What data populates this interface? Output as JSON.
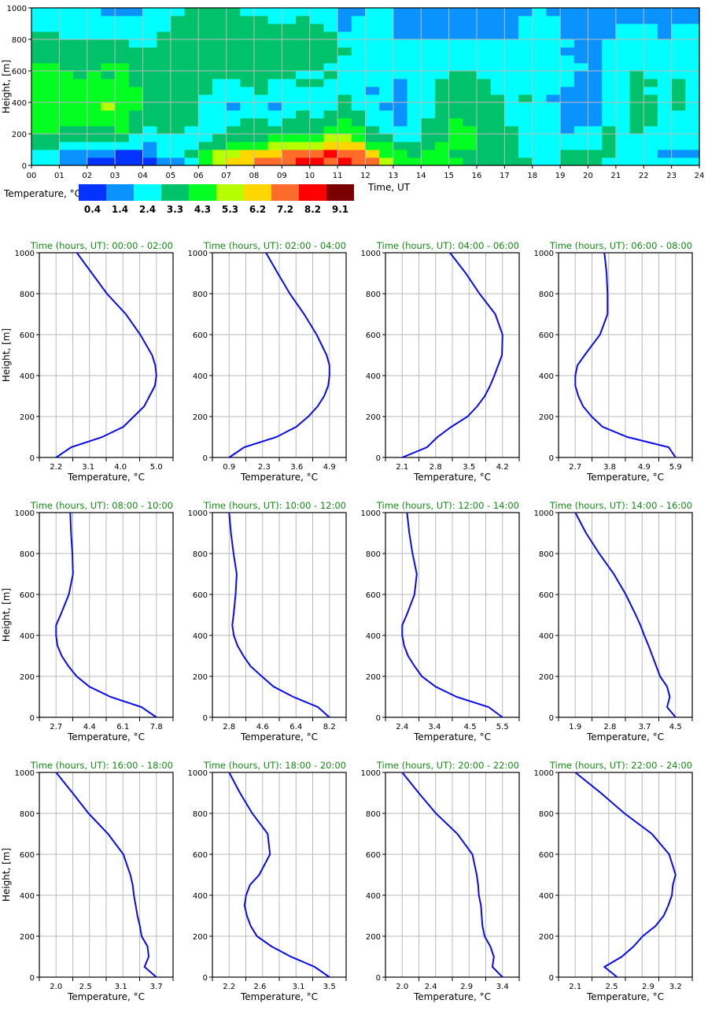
{
  "chart_data": [
    {
      "type": "heatmap",
      "title": "",
      "xlabel": "Time, UT",
      "ylabel": "Height, [m]",
      "xlim": [
        0,
        24
      ],
      "ylim": [
        0,
        1000
      ],
      "x_ticks": [
        "00",
        "01",
        "02",
        "03",
        "04",
        "05",
        "06",
        "07",
        "08",
        "09",
        "10",
        "11",
        "12",
        "13",
        "14",
        "15",
        "16",
        "17",
        "18",
        "19",
        "20",
        "21",
        "22",
        "23",
        "24"
      ],
      "y_ticks": [
        "0",
        "200",
        "400",
        "600",
        "800",
        "1000"
      ],
      "y_tick_values": [
        0,
        200,
        400,
        600,
        800,
        1000
      ],
      "time_step_hours": 0.5,
      "height_step_m": 50,
      "grid": true,
      "colorbar": {
        "label": "Temperature, °C",
        "levels": [
          "0.4",
          "1.4",
          "2.4",
          "3.3",
          "4.3",
          "5.3",
          "6.2",
          "7.2",
          "8.2",
          "9.1"
        ],
        "colors": [
          "#0433ff",
          "#0a93ff",
          "#00ffff",
          "#00c26a",
          "#02ff21",
          "#b6ff00",
          "#ffd600",
          "#ff6b2b",
          "#ff0000",
          "#7d0000"
        ]
      },
      "class_rows_bottom_to_top": [
        "221100000112456677788787754444433333223332222222",
        "221111001223455666777877644344333332223333222111",
        "332222221222334445555666443334443332222223222222",
        "333333322222233334444554332233443332222223222222",
        "443333432332223333333444322233443332221223232222",
        "444444433333222332333343221233433322221112233222",
        "444444433333222222232333221223333322221112233222",
        "444445443333221221222232211223333322221112233232",
        "444444443333222222222232221223333323211112233232",
        "444444443333322232222222121223333222221112232232",
        "444444433333322332233222221223333222222112233232",
        "444343433333333333322322222222332222222112232222",
        "443334433333333333333222222222222222222212222222",
        "333333333333333333333322222222222222222112222222",
        "333333333333333333333332222222222222221112222222",
        "333333322333333333333322222222222222222112222222",
        "332222222333333333333322221111111112221111222122",
        "222222222233333333333212221111111112221111222122",
        "222222222233333332232212221111111112221111111111",
        "222221112223333222222211221111111111211111111111"
      ]
    },
    {
      "type": "line",
      "xlabel": "Temperature, °C",
      "ylabel": "Height, [m]",
      "ylim": [
        0,
        1000
      ],
      "y_ticks": [
        "0",
        "200",
        "400",
        "600",
        "800",
        "1000"
      ],
      "y_tick_values": [
        0,
        200,
        400,
        600,
        800,
        1000
      ],
      "heights": [
        0,
        50,
        100,
        150,
        200,
        250,
        300,
        350,
        400,
        450,
        500,
        600,
        700,
        800,
        900,
        1000
      ],
      "line_color": "#0a0aee",
      "title_color": "#138a13",
      "grid": true,
      "panels": [
        {
          "title": "Time (hours, UT): 00:00 - 02:00",
          "x_ticks": [
            "2.2",
            "3.1",
            "4.0",
            "5.0"
          ],
          "x_tick_values": [
            2.2,
            3.1,
            4.0,
            5.0
          ],
          "temps": [
            2.2,
            2.62,
            3.49,
            4.08,
            4.37,
            4.66,
            4.81,
            4.96,
            5.0,
            4.97,
            4.88,
            4.55,
            4.15,
            3.62,
            3.2,
            2.78
          ]
        },
        {
          "title": "Time (hours, UT): 02:00 - 04:00",
          "x_ticks": [
            "0.9",
            "2.3",
            "3.6",
            "4.9"
          ],
          "x_tick_values": [
            0.9,
            2.3,
            3.6,
            4.9
          ],
          "temps": [
            0.9,
            1.5,
            2.79,
            3.58,
            4.06,
            4.43,
            4.69,
            4.85,
            4.9,
            4.9,
            4.79,
            4.39,
            3.89,
            3.32,
            2.84,
            2.37
          ]
        },
        {
          "title": "Time (hours, UT): 04:00 - 06:00",
          "x_ticks": [
            "2.1",
            "2.8",
            "3.5",
            "4.2"
          ],
          "x_tick_values": [
            2.1,
            2.8,
            3.5,
            4.2
          ],
          "temps": [
            2.1,
            2.62,
            2.84,
            3.13,
            3.47,
            3.67,
            3.83,
            3.94,
            4.03,
            4.11,
            4.19,
            4.2,
            4.05,
            3.72,
            3.43,
            3.1
          ]
        },
        {
          "title": "Time (hours, UT): 06:00 - 08:00",
          "x_ticks": [
            "2.7",
            "3.8",
            "4.9",
            "5.9"
          ],
          "x_tick_values": [
            2.7,
            3.8,
            4.9,
            5.9
          ],
          "temps": [
            5.9,
            5.68,
            4.36,
            3.57,
            3.22,
            2.95,
            2.8,
            2.7,
            2.7,
            2.77,
            3.0,
            3.49,
            3.73,
            3.73,
            3.7,
            3.63
          ]
        },
        {
          "title": "Time (hours, UT): 08:00 - 10:00",
          "x_ticks": [
            "2.7",
            "4.4",
            "6.1",
            "7.8"
          ],
          "x_tick_values": [
            2.7,
            4.4,
            6.1,
            7.8
          ],
          "temps": [
            7.8,
            7.05,
            5.46,
            4.39,
            3.75,
            3.33,
            2.99,
            2.77,
            2.7,
            2.7,
            2.93,
            3.35,
            3.56,
            3.53,
            3.46,
            3.42
          ]
        },
        {
          "title": "Time (hours, UT): 10:00 - 12:00",
          "x_ticks": [
            "2.8",
            "4.6",
            "6.4",
            "8.2"
          ],
          "x_tick_values": [
            2.8,
            4.6,
            6.4,
            8.2
          ],
          "temps": [
            8.2,
            7.58,
            6.25,
            5.19,
            4.56,
            3.95,
            3.57,
            3.25,
            3.05,
            2.97,
            3.04,
            3.15,
            3.21,
            3.04,
            2.9,
            2.8
          ]
        },
        {
          "title": "Time (hours, UT): 12:00 - 14:00",
          "x_ticks": [
            "2.4",
            "3.4",
            "4.5",
            "5.5"
          ],
          "x_tick_values": [
            2.4,
            3.4,
            4.5,
            5.5
          ],
          "temps": [
            5.5,
            5.07,
            4.08,
            3.43,
            3.01,
            2.78,
            2.58,
            2.46,
            2.4,
            2.4,
            2.54,
            2.78,
            2.85,
            2.72,
            2.62,
            2.55
          ]
        },
        {
          "title": "Time (hours, UT): 14:00 - 16:00",
          "x_ticks": [
            "1.9",
            "2.8",
            "3.7",
            "4.5"
          ],
          "x_tick_values": [
            1.9,
            2.8,
            3.7,
            4.5
          ],
          "temps": [
            4.5,
            4.28,
            4.35,
            4.28,
            4.1,
            4.0,
            3.9,
            3.8,
            3.69,
            3.59,
            3.47,
            3.21,
            2.9,
            2.52,
            2.18,
            1.9
          ]
        },
        {
          "title": "Time (hours, UT): 16:00 - 18:00",
          "x_ticks": [
            "2.0",
            "2.5",
            "3.1",
            "3.7"
          ],
          "x_tick_values": [
            2.0,
            2.5,
            3.1,
            3.7
          ],
          "temps": [
            3.7,
            3.5,
            3.57,
            3.55,
            3.45,
            3.42,
            3.38,
            3.35,
            3.32,
            3.3,
            3.26,
            3.14,
            2.88,
            2.55,
            2.28,
            2.0
          ]
        },
        {
          "title": "Time (hours, UT): 18:00 - 20:00",
          "x_ticks": [
            "2.2",
            "2.6",
            "3.1",
            "3.5"
          ],
          "x_tick_values": [
            2.2,
            2.6,
            3.1,
            3.5
          ],
          "temps": [
            3.5,
            3.31,
            3.0,
            2.75,
            2.56,
            2.48,
            2.43,
            2.4,
            2.42,
            2.47,
            2.59,
            2.73,
            2.7,
            2.5,
            2.34,
            2.2
          ]
        },
        {
          "title": "Time (hours, UT): 20:00 - 22:00",
          "x_ticks": [
            "2.0",
            "2.4",
            "2.9",
            "3.4"
          ],
          "x_tick_values": [
            2.0,
            2.4,
            2.9,
            3.4
          ],
          "temps": [
            3.4,
            3.26,
            3.28,
            3.23,
            3.15,
            3.12,
            3.11,
            3.1,
            3.07,
            3.06,
            3.04,
            2.98,
            2.77,
            2.47,
            2.23,
            2.0
          ]
        },
        {
          "title": "Time (hours, UT): 22:00 - 24:00",
          "x_ticks": [
            "2.1",
            "2.5",
            "2.9",
            "3.2"
          ],
          "x_tick_values": [
            2.1,
            2.5,
            2.9,
            3.2
          ],
          "temps": [
            2.56,
            2.42,
            2.61,
            2.74,
            2.84,
            2.98,
            3.07,
            3.12,
            3.16,
            3.17,
            3.2,
            3.13,
            2.94,
            2.64,
            2.38,
            2.1
          ]
        }
      ]
    }
  ]
}
